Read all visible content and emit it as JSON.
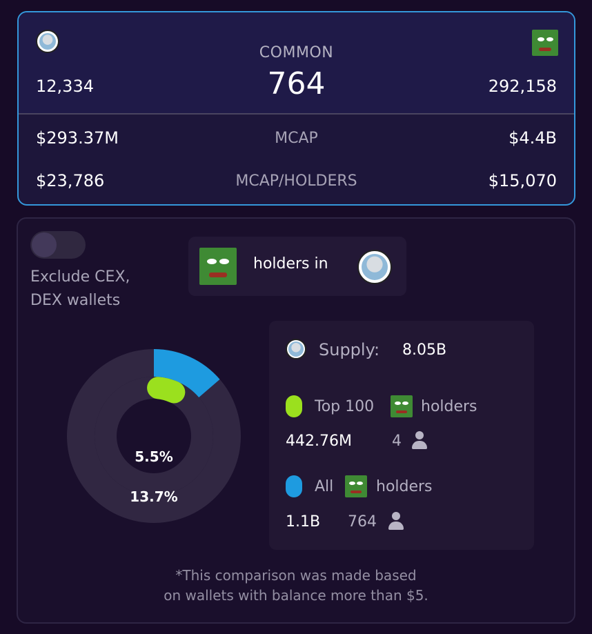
{
  "colors": {
    "accent_blue": "#1e9be0",
    "accent_green": "#9be01e",
    "card_border": "#3498db"
  },
  "top_card": {
    "left_token_icon": "common-avatar-icon",
    "right_token_icon": "pepe-icon",
    "title": "COMMON",
    "common_value": "764",
    "left_holders": "12,334",
    "right_holders": "292,158",
    "rows": [
      {
        "left": "$293.37M",
        "label": "MCAP",
        "right": "$4.4B"
      },
      {
        "left": "$23,786",
        "label": "MCAP/HOLDERS",
        "right": "$15,070"
      }
    ]
  },
  "bottom_card": {
    "toggle": {
      "label_line1": "Exclude CEX,",
      "label_line2": "DEX wallets",
      "enabled": false
    },
    "holders_in": {
      "text": "holders in",
      "from_icon": "pepe-icon",
      "to_icon": "common-avatar-icon"
    },
    "donut": {
      "inner_percent_label": "5.5%",
      "outer_percent_label": "13.7%",
      "inner_fraction": 0.055,
      "outer_fraction": 0.137
    },
    "supply": {
      "label": "Supply:",
      "value": "8.05B",
      "top": {
        "prefix": "Top 100",
        "suffix": "holders",
        "amount": "442.76M",
        "count": "4"
      },
      "all": {
        "prefix": "All",
        "suffix": "holders",
        "amount": "1.1B",
        "count": "764"
      }
    },
    "footnote_line1": "*This comparison was made based",
    "footnote_line2": "on wallets with balance more than $5."
  }
}
